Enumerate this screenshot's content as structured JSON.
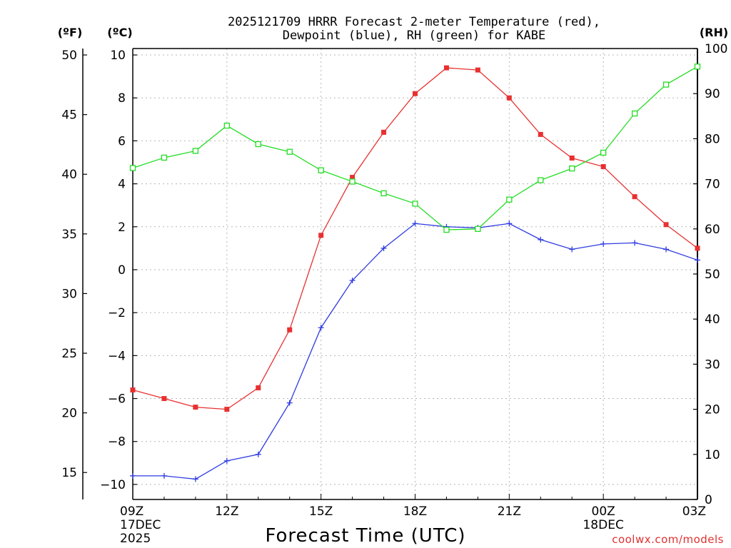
{
  "chart_data": {
    "type": "line",
    "title_line1": "2025121709 HRRR Forecast 2-meter Temperature (red),",
    "title_line2": "Dewpoint (blue), RH (green) for KABE",
    "unit_labels": {
      "fahrenheit": "(ºF)",
      "celsius": "(ºC)",
      "rh": "(RH)"
    },
    "xlabel": "Forecast Time (UTC)",
    "watermark": "coolwx.com/models",
    "x_hours": [
      0,
      1,
      2,
      3,
      4,
      5,
      6,
      7,
      8,
      9,
      10,
      11,
      12,
      13,
      14,
      15,
      16,
      17,
      18
    ],
    "xlim": [
      0,
      18
    ],
    "x_ticks": [
      {
        "hour": 0,
        "label": "09Z",
        "sub1": "17DEC",
        "sub2": "2025"
      },
      {
        "hour": 3,
        "label": "12Z"
      },
      {
        "hour": 6,
        "label": "15Z"
      },
      {
        "hour": 9,
        "label": "18Z"
      },
      {
        "hour": 12,
        "label": "21Z"
      },
      {
        "hour": 15,
        "label": "00Z",
        "sub1": "18DEC"
      },
      {
        "hour": 18,
        "label": "03Z"
      }
    ],
    "celsius_axis": {
      "ylim": [
        -10.7,
        10.3
      ],
      "ticks": [
        -10,
        -8,
        -6,
        -4,
        -2,
        0,
        2,
        4,
        6,
        8,
        10
      ]
    },
    "fahrenheit_axis": {
      "ticks": [
        15,
        20,
        25,
        30,
        35,
        40,
        45,
        50
      ]
    },
    "rh_axis": {
      "ylim": [
        0,
        100
      ],
      "ticks": [
        0,
        10,
        20,
        30,
        40,
        50,
        60,
        70,
        80,
        90,
        100
      ]
    },
    "series": [
      {
        "name": "Temperature",
        "axis": "celsius",
        "color": "#e83030",
        "marker": "filled-square",
        "values": [
          -5.6,
          -6.0,
          -6.4,
          -6.5,
          -5.5,
          -2.8,
          1.6,
          4.3,
          6.4,
          8.2,
          9.4,
          9.3,
          8.0,
          6.3,
          5.2,
          4.8,
          3.4,
          2.1,
          1.0
        ]
      },
      {
        "name": "Dewpoint",
        "axis": "celsius",
        "color": "#2e3be0",
        "marker": "plus",
        "values": [
          -9.6,
          -9.6,
          -9.75,
          -8.9,
          -8.6,
          -6.2,
          -2.7,
          -0.5,
          1.0,
          2.15,
          2.0,
          1.95,
          2.15,
          1.4,
          0.95,
          1.2,
          1.25,
          0.95,
          0.45
        ]
      },
      {
        "name": "RH",
        "axis": "rh",
        "color": "#22dd22",
        "marker": "open-square",
        "values": [
          73.5,
          75.8,
          77.3,
          82.9,
          78.8,
          77.1,
          73.0,
          70.5,
          67.9,
          65.6,
          59.8,
          60.0,
          66.5,
          70.8,
          73.4,
          76.9,
          85.6,
          92.0,
          96.0
        ]
      }
    ]
  }
}
